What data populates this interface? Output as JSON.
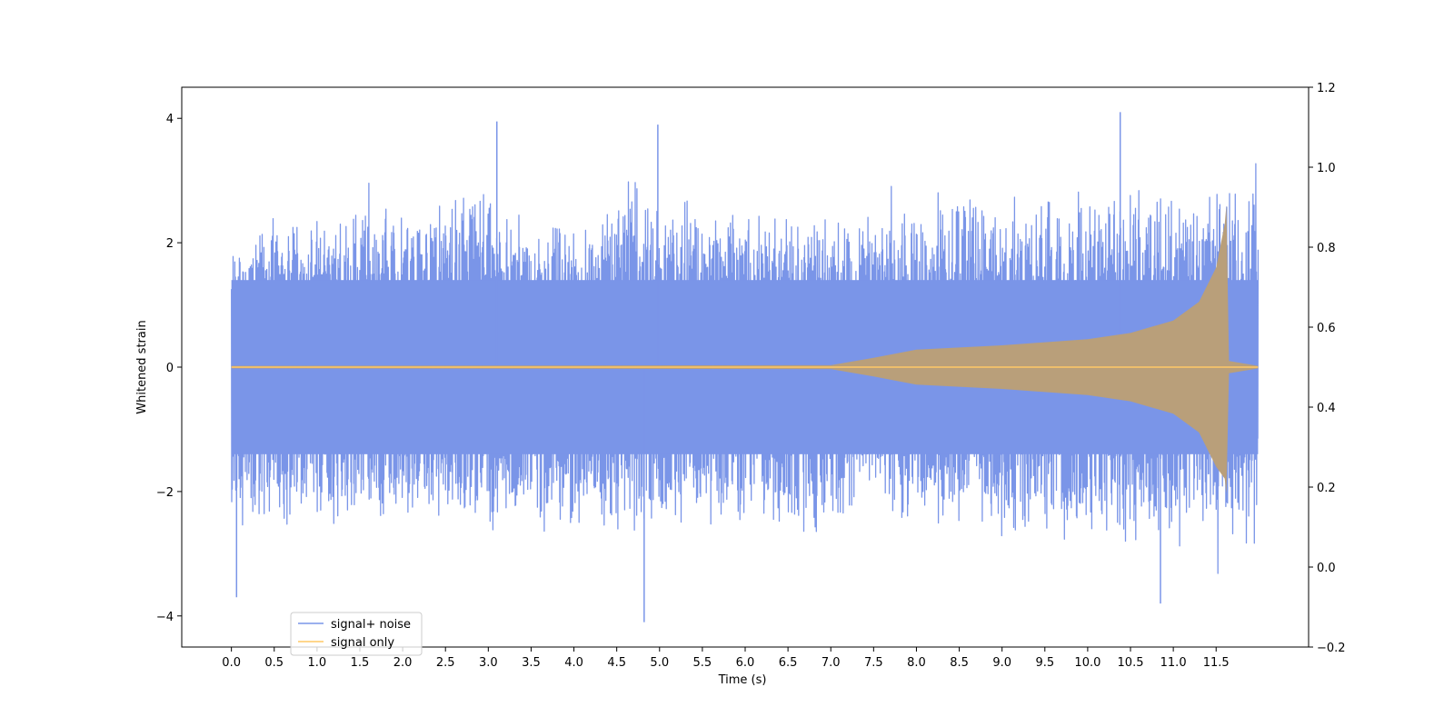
{
  "chart_data": {
    "type": "line",
    "title": "",
    "xlabel": "Time (s)",
    "ylabel": "Whitened strain",
    "xlim": [
      -0.58,
      12.58
    ],
    "ylim": [
      -4.5,
      4.5
    ],
    "y2lim": [
      -0.2,
      1.2
    ],
    "xticks": [
      "0.0",
      "0.5",
      "1.0",
      "1.5",
      "2.0",
      "2.5",
      "3.0",
      "3.5",
      "4.0",
      "4.5",
      "5.0",
      "5.5",
      "6.0",
      "6.5",
      "7.0",
      "7.5",
      "8.0",
      "8.5",
      "9.0",
      "9.5",
      "10.0",
      "10.5",
      "11.0",
      "11.5"
    ],
    "yticks": [
      "4",
      "2",
      "0",
      "−2",
      "−4"
    ],
    "y2ticks": [
      "1.2",
      "1.0",
      "0.8",
      "0.6",
      "0.4",
      "0.2",
      "0.0",
      "−0.2"
    ],
    "grid": false,
    "legend": {
      "placement": "lower-left"
    },
    "series": [
      {
        "name": "signal+ noise",
        "color": "#7a95e8",
        "t_start": 0.0,
        "t_end": 11.99,
        "envelope_upper_approx": [
          2.0,
          2.6,
          2.4,
          2.8,
          2.5,
          3.0,
          2.7,
          2.6,
          2.5,
          3.1,
          2.8,
          2.6,
          2.7,
          2.6,
          2.4,
          2.8,
          2.9,
          2.8,
          2.8,
          3.0,
          2.9,
          3.1,
          3.0,
          3.3
        ],
        "envelope_lower_approx": [
          -2.4,
          -2.6,
          -2.7,
          -2.7,
          -2.6,
          -2.5,
          -2.8,
          -2.6,
          -2.7,
          -2.9,
          -2.7,
          -2.6,
          -2.7,
          -2.8,
          -2.6,
          -2.5,
          -2.6,
          -2.7,
          -2.8,
          -2.9,
          -3.0,
          -3.1,
          -2.9,
          -3.0
        ],
        "peaks": [
          {
            "x": 0.06,
            "y": -3.7
          },
          {
            "x": 3.1,
            "y": 3.95
          },
          {
            "x": 4.82,
            "y": -4.1
          },
          {
            "x": 4.98,
            "y": 3.9
          },
          {
            "x": 10.38,
            "y": 4.1
          },
          {
            "x": 10.85,
            "y": -3.8
          }
        ]
      },
      {
        "name": "signal only",
        "color": "#ffc966",
        "t_start": 0.0,
        "t_end": 11.99,
        "amplitude_approx": [
          {
            "x": 0.0,
            "y": 0.02
          },
          {
            "x": 7.0,
            "y": 0.03
          },
          {
            "x": 7.5,
            "y": 0.15
          },
          {
            "x": 8.0,
            "y": 0.28
          },
          {
            "x": 9.0,
            "y": 0.35
          },
          {
            "x": 10.0,
            "y": 0.45
          },
          {
            "x": 10.5,
            "y": 0.55
          },
          {
            "x": 11.0,
            "y": 0.75
          },
          {
            "x": 11.3,
            "y": 1.05
          },
          {
            "x": 11.5,
            "y": 1.6
          },
          {
            "x": 11.6,
            "y": 2.3
          },
          {
            "x": 11.62,
            "y": 2.6
          },
          {
            "x": 11.65,
            "y": 0.1
          },
          {
            "x": 11.99,
            "y": 0.02
          }
        ]
      }
    ]
  }
}
